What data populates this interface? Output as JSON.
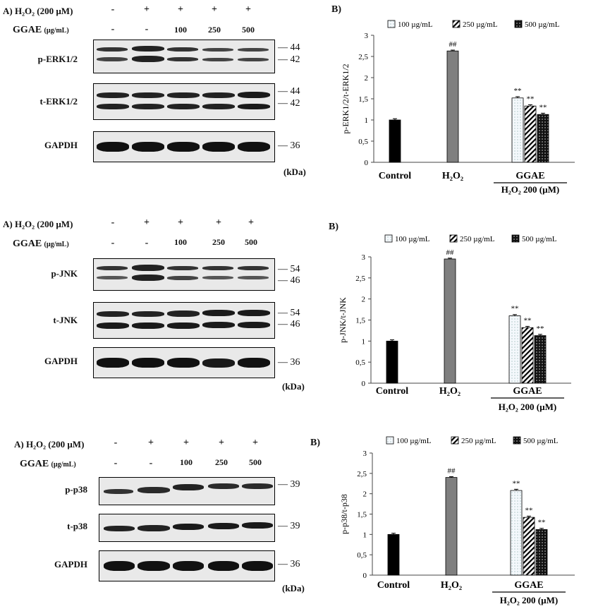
{
  "figure": {
    "panels": [
      {
        "id": "erk",
        "panel_a_label": "A)",
        "h2o2_label": "H₂O₂ (200 µM)",
        "h2o2_row": [
          "-",
          "+",
          "+",
          "+",
          "+"
        ],
        "ggae_label": "GGAE",
        "ggae_unit": "(µg/mL)",
        "ggae_row": [
          "-",
          "-",
          "100",
          "250",
          "500"
        ],
        "blots": [
          {
            "label": "p-ERK1/2",
            "markers": [
              "44",
              "42"
            ]
          },
          {
            "label": "t-ERK1/2",
            "markers": [
              "44",
              "42"
            ]
          },
          {
            "label": "GAPDH",
            "markers": [
              "36"
            ]
          }
        ],
        "kda_label": "(kDa)",
        "panel_b_label": "B)"
      },
      {
        "id": "jnk",
        "panel_a_label": "A)",
        "h2o2_label": "H₂O₂ (200 µM)",
        "h2o2_row": [
          "-",
          "+",
          "+",
          "+",
          "+"
        ],
        "ggae_label": "GGAE",
        "ggae_unit": "(µg/mL)",
        "ggae_row": [
          "-",
          "-",
          "100",
          "250",
          "500"
        ],
        "blots": [
          {
            "label": "p-JNK",
            "markers": [
              "54",
              "46"
            ]
          },
          {
            "label": "t-JNK",
            "markers": [
              "54",
              "46"
            ]
          },
          {
            "label": "GAPDH",
            "markers": [
              "36"
            ]
          }
        ],
        "kda_label": "(kDa)",
        "panel_b_label": "B)"
      },
      {
        "id": "p38",
        "panel_a_label": "A)",
        "h2o2_label": "H₂O₂ (200 µM)",
        "h2o2_row": [
          "-",
          "+",
          "+",
          "+",
          "+"
        ],
        "ggae_label": "GGAE",
        "ggae_unit": "(µg/mL)",
        "ggae_row": [
          "-",
          "-",
          "100",
          "250",
          "500"
        ],
        "blots": [
          {
            "label": "p-p38",
            "markers": [
              "39"
            ]
          },
          {
            "label": "t-p38",
            "markers": [
              "39"
            ]
          },
          {
            "label": "GAPDH",
            "markers": [
              "36"
            ]
          }
        ],
        "kda_label": "(kDa)",
        "panel_b_label": "B)"
      }
    ]
  },
  "chart_data": [
    {
      "type": "bar",
      "ylabel": "p-ERK1/2/t-ERK1/2",
      "ylim": [
        0,
        3
      ],
      "yticks": [
        "0",
        "0,5",
        "1",
        "1,5",
        "2",
        "2,5",
        "3"
      ],
      "legend": [
        "100 µg/mL",
        "250 µg/mL",
        "500 µg/mL"
      ],
      "legend_position": "top",
      "group_labels": [
        "Control",
        "H₂O₂",
        "GGAE"
      ],
      "group_sublabel": "H₂O₂ 200 (µM)",
      "bars": [
        {
          "group": "Control",
          "value": 1.0,
          "error": 0.03,
          "annotation": ""
        },
        {
          "group": "H₂O₂",
          "value": 2.63,
          "error": 0.02,
          "annotation": "##"
        },
        {
          "group": "GGAE",
          "series": "100 µg/mL",
          "value": 1.52,
          "error": 0.03,
          "annotation": "**"
        },
        {
          "group": "GGAE",
          "series": "250 µg/mL",
          "value": 1.33,
          "error": 0.03,
          "annotation": "**"
        },
        {
          "group": "GGAE",
          "series": "500 µg/mL",
          "value": 1.13,
          "error": 0.03,
          "annotation": "**"
        }
      ]
    },
    {
      "type": "bar",
      "ylabel": "p-JNK/t-JNK",
      "ylim": [
        0,
        3
      ],
      "yticks": [
        "0",
        "0,5",
        "1",
        "1,5",
        "2",
        "2,5",
        "3"
      ],
      "legend": [
        "100 µg/mL",
        "250 µg/mL",
        "500 µg/mL"
      ],
      "legend_position": "top",
      "group_labels": [
        "Control",
        "H₂O₂",
        "GGAE"
      ],
      "group_sublabel": "H₂O₂ 200 (µM)",
      "bars": [
        {
          "group": "Control",
          "value": 1.0,
          "error": 0.03,
          "annotation": ""
        },
        {
          "group": "H₂O₂",
          "value": 2.95,
          "error": 0.02,
          "annotation": "##"
        },
        {
          "group": "GGAE",
          "series": "100 µg/mL",
          "value": 1.6,
          "error": 0.03,
          "annotation": "**"
        },
        {
          "group": "GGAE",
          "series": "250 µg/mL",
          "value": 1.32,
          "error": 0.03,
          "annotation": "**"
        },
        {
          "group": "GGAE",
          "series": "500 µg/mL",
          "value": 1.13,
          "error": 0.03,
          "annotation": "**"
        }
      ]
    },
    {
      "type": "bar",
      "ylabel": "p-p38/t-p38",
      "ylim": [
        0,
        3
      ],
      "yticks": [
        "0",
        "0,5",
        "1",
        "1,5",
        "2",
        "2,5",
        "3"
      ],
      "legend": [
        "100 µg/mL",
        "250 µg/mL",
        "500 µg/mL"
      ],
      "legend_position": "top",
      "group_labels": [
        "Control",
        "H₂O₂",
        "GGAE"
      ],
      "group_sublabel": "H₂O₂ 200 (µM)",
      "bars": [
        {
          "group": "Control",
          "value": 1.0,
          "error": 0.03,
          "annotation": ""
        },
        {
          "group": "H₂O₂",
          "value": 2.4,
          "error": 0.02,
          "annotation": "##"
        },
        {
          "group": "GGAE",
          "series": "100 µg/mL",
          "value": 2.08,
          "error": 0.03,
          "annotation": "**"
        },
        {
          "group": "GGAE",
          "series": "250 µg/mL",
          "value": 1.42,
          "error": 0.03,
          "annotation": "**"
        },
        {
          "group": "GGAE",
          "series": "500 µg/mL",
          "value": 1.12,
          "error": 0.03,
          "annotation": "**"
        }
      ]
    }
  ]
}
